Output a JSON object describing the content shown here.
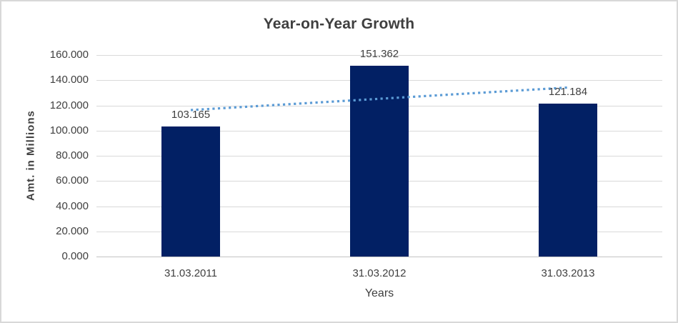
{
  "chart_data": {
    "type": "bar",
    "title": "Year-on-Year Growth",
    "categories": [
      "31.03.2011",
      "31.03.2012",
      "31.03.2013"
    ],
    "values": [
      103.165,
      151.362,
      121.184
    ],
    "data_labels": [
      "103.165",
      "151.362",
      "121.184"
    ],
    "xlabel": "Years",
    "ylabel": "Amt. in Millions",
    "ylim": [
      0,
      160
    ],
    "ytick_interval": 20,
    "ytick_labels": [
      "0.000",
      "20.000",
      "40.000",
      "60.000",
      "80.000",
      "100.000",
      "120.000",
      "140.000",
      "160.000"
    ],
    "grid": true,
    "legend": "none",
    "trendline": {
      "type": "linear",
      "style": "dotted",
      "endpoint_values": [
        116.3,
        134.2
      ]
    },
    "colors": {
      "bar": "#022064",
      "trendline": "#5b9bd5",
      "title_text": "#3f3f3f",
      "axis_text": "#404040",
      "gridline": "#d9d9d9",
      "axis_line": "#c3c3c3",
      "background": "#ffffff",
      "border": "#d8d8d8"
    }
  }
}
